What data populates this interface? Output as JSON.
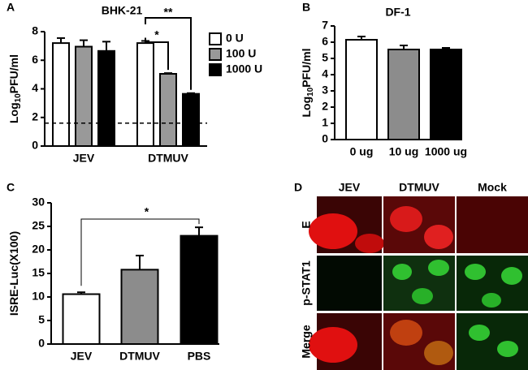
{
  "panel_labels": [
    "A",
    "B",
    "C",
    "D"
  ],
  "chart_data": [
    {
      "type": "bar",
      "title": "BHK-21",
      "y_label": [
        "Log",
        "10",
        "PFU/ml"
      ],
      "categories": [
        "JEV",
        "DTMUV"
      ],
      "series": [
        {
          "name": "0 U",
          "color": "#ffffff",
          "values": [
            7.2,
            7.2
          ],
          "errors": [
            0.35,
            0.15
          ]
        },
        {
          "name": "100 U",
          "color": "#999999",
          "values": [
            6.95,
            5.05
          ],
          "errors": [
            0.45,
            0.05
          ]
        },
        {
          "name": "1000 U",
          "color": "#000000",
          "values": [
            6.65,
            3.65
          ],
          "errors": [
            0.65,
            0.05
          ]
        }
      ],
      "ylim": [
        0,
        8
      ],
      "yticks": [
        0,
        2,
        4,
        6,
        8
      ],
      "reference_line": 1.6,
      "annotations": [
        "*",
        "**"
      ]
    },
    {
      "type": "bar",
      "title": "DF-1",
      "y_label": [
        "Log",
        "10",
        "PFU/ml"
      ],
      "categories": [
        "0 ug",
        "10 ug",
        "1000 ug"
      ],
      "values": [
        6.15,
        5.55,
        5.55
      ],
      "errors": [
        0.2,
        0.25,
        0.1
      ],
      "colors": [
        "#ffffff",
        "#8c8c8c",
        "#000000"
      ],
      "ylim": [
        0,
        7
      ],
      "yticks": [
        0,
        1,
        2,
        3,
        4,
        5,
        6,
        7
      ]
    },
    {
      "type": "bar",
      "y_label": [
        "ISRE-Luc(X100)"
      ],
      "categories": [
        "JEV",
        "DTMUV",
        "PBS"
      ],
      "values": [
        10.6,
        15.8,
        23
      ],
      "errors": [
        0.4,
        3.0,
        1.8
      ],
      "colors": [
        "#ffffff",
        "#8c8c8c",
        "#000000"
      ],
      "ylim": [
        0,
        30
      ],
      "yticks": [
        0,
        5,
        10,
        15,
        20,
        25,
        30
      ],
      "annotations": [
        "*"
      ]
    }
  ],
  "panel_d": {
    "columns": [
      "JEV",
      "DTMUV",
      "Mock"
    ],
    "rows": [
      "E",
      "p-STAT1",
      "Merge"
    ]
  }
}
